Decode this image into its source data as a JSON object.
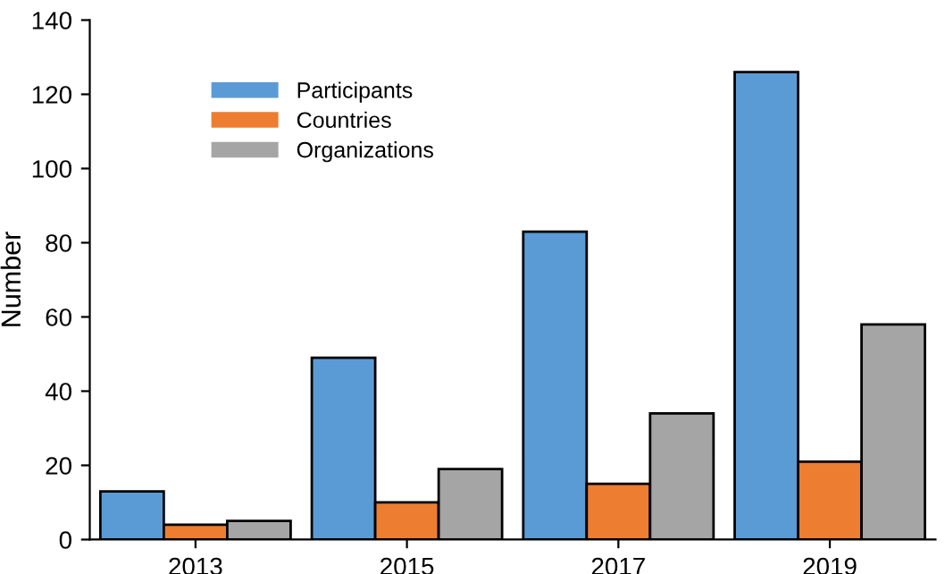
{
  "chart_data": {
    "type": "bar",
    "ylabel": "Number",
    "categories": [
      "2013",
      "2015",
      "2017",
      "2019"
    ],
    "series": [
      {
        "name": "Participants",
        "color": "#5b9bd5",
        "values": [
          13,
          49,
          83,
          126
        ]
      },
      {
        "name": "Countries",
        "color": "#ed7d31",
        "values": [
          4,
          10,
          15,
          21
        ]
      },
      {
        "name": "Organizations",
        "color": "#a5a5a5",
        "values": [
          5,
          19,
          34,
          58
        ]
      }
    ],
    "ylim": [
      0,
      140
    ],
    "yticks": [
      0,
      20,
      40,
      60,
      80,
      100,
      120,
      140
    ],
    "grid": false,
    "legend": "top left"
  }
}
